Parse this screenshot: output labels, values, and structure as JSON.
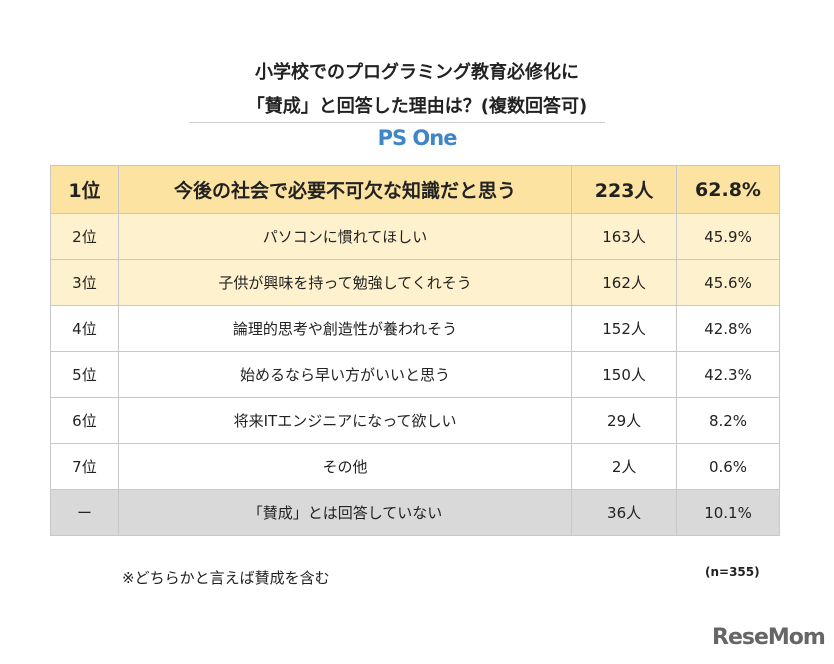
{
  "title_line1": "小学校でのプログラミング教育必修化に",
  "title_line2": "「賛成」と回答した理由は？(複数回答可)",
  "brand": "PS One",
  "colors": {
    "header": "#fde3a2",
    "highlight": "#fef1cd",
    "gray": "#d9d9d9",
    "brand": "#3f86c6"
  },
  "chart_data": {
    "type": "table",
    "rows": [
      {
        "rank": "1位",
        "reason": "今後の社会で必要不可欠な知識だと思う",
        "count": "223人",
        "percent": "62.8%"
      },
      {
        "rank": "2位",
        "reason": "パソコンに慣れてほしい",
        "count": "163人",
        "percent": "45.9%"
      },
      {
        "rank": "3位",
        "reason": "子供が興味を持って勉強してくれそう",
        "count": "162人",
        "percent": "45.6%"
      },
      {
        "rank": "4位",
        "reason": "論理的思考や創造性が養われそう",
        "count": "152人",
        "percent": "42.8%"
      },
      {
        "rank": "5位",
        "reason": "始めるなら早い方がいいと思う",
        "count": "150人",
        "percent": "42.3%"
      },
      {
        "rank": "6位",
        "reason": "将来ITエンジニアになって欲しい",
        "count": "29人",
        "percent": "8.2%"
      },
      {
        "rank": "7位",
        "reason": "その他",
        "count": "2人",
        "percent": "0.6%"
      },
      {
        "rank": "ー",
        "reason": "「賛成」とは回答していない",
        "count": "36人",
        "percent": "10.1%"
      }
    ]
  },
  "note": "※どちらかと言えば賛成を含む",
  "sample": "(n=355)",
  "logo": "ReseMom"
}
